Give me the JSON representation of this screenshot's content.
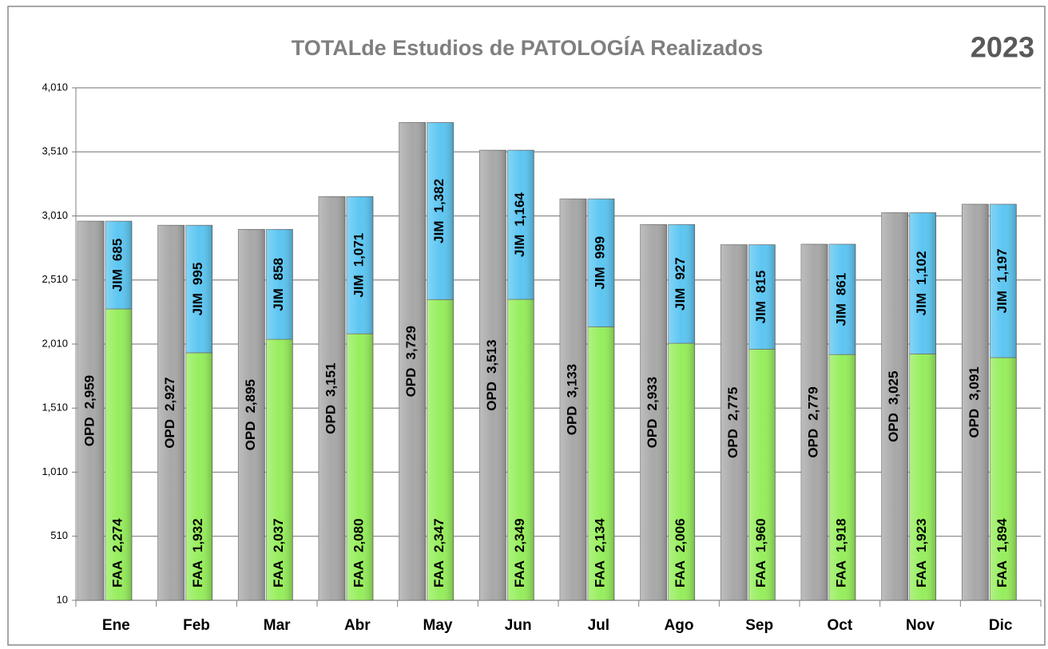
{
  "chart_data": {
    "type": "grouped_stacked_bar",
    "title": "TOTALde Estudios de PATOLOGÍA Realizados",
    "year": "2023",
    "categories": [
      "Ene",
      "Feb",
      "Mar",
      "Abr",
      "May",
      "Jun",
      "Jul",
      "Ago",
      "Sep",
      "Oct",
      "Nov",
      "Dic"
    ],
    "series": [
      {
        "name": "OPD",
        "color": "#a8a8a8",
        "stack": "a",
        "values": [
          2959,
          2927,
          2895,
          3151,
          3729,
          3513,
          3133,
          2933,
          2775,
          2779,
          3025,
          3091
        ],
        "value_labels": [
          "2,959",
          "2,927",
          "2,895",
          "3,151",
          "3,729",
          "3,513",
          "3,133",
          "2,933",
          "2,775",
          "2,779",
          "3,025",
          "3,091"
        ]
      },
      {
        "name": "FAA",
        "color": "#96ee5c",
        "stack": "b",
        "values": [
          2274,
          1932,
          2037,
          2080,
          2347,
          2349,
          2134,
          2006,
          1960,
          1918,
          1923,
          1894
        ],
        "value_labels": [
          "2,274",
          "1,932",
          "2,037",
          "2,080",
          "2,347",
          "2,349",
          "2,134",
          "2,006",
          "1,960",
          "1,918",
          "1,923",
          "1,894"
        ]
      },
      {
        "name": "JIM",
        "color": "#5cc6f2",
        "stack": "b",
        "values": [
          685,
          995,
          858,
          1071,
          1382,
          1164,
          999,
          927,
          815,
          861,
          1102,
          1197
        ],
        "value_labels": [
          "685",
          "995",
          "858",
          "1,071",
          "1,382",
          "1,164",
          "999",
          "927",
          "815",
          "861",
          "1,102",
          "1,197"
        ]
      }
    ],
    "ylim": [
      10,
      4010
    ],
    "yticks": [
      10,
      510,
      {
        "value": 1010,
        "label": "1,010"
      },
      {
        "value": 1510,
        "label": "1,510"
      },
      {
        "value": 2010,
        "label": "2,010"
      },
      {
        "value": 2510,
        "label": "2,510"
      },
      {
        "value": 3010,
        "label": "3,010"
      },
      {
        "value": 3510,
        "label": "3,510"
      },
      {
        "value": 4010,
        "label": "4,010"
      }
    ],
    "grid": true
  }
}
